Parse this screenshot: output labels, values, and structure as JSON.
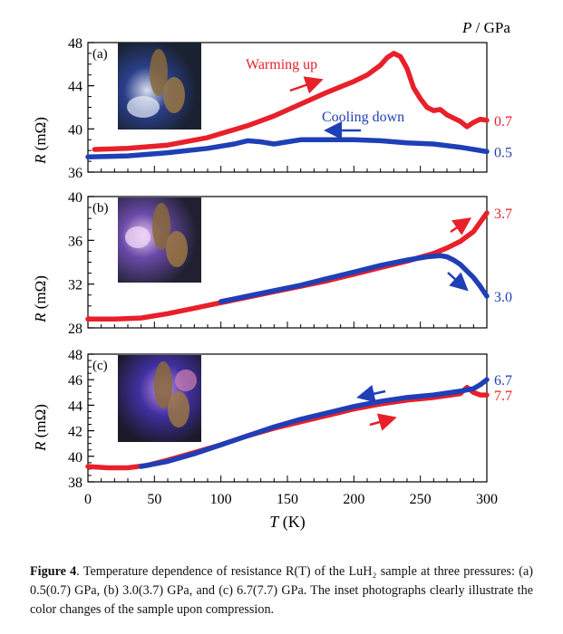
{
  "figure": {
    "unit_label": {
      "symbol": "P",
      "rest": " / GPa"
    }
  },
  "chart_data": [
    {
      "type": "line",
      "panel": "(a)",
      "ylabel": "R (mΩ)",
      "ylabel_symbol": "R",
      "ylabel_unit": " (mΩ)",
      "xlim": [
        0,
        300
      ],
      "ylim": [
        36,
        48
      ],
      "yticks": [
        36,
        40,
        44,
        48
      ],
      "annotations": [
        "Warming up",
        "Cooling down"
      ],
      "series": [
        {
          "name": "0.7",
          "color": "#e8202a",
          "x": [
            5,
            30,
            60,
            90,
            120,
            140,
            160,
            180,
            200,
            210,
            220,
            225,
            230,
            235,
            240,
            245,
            250,
            255,
            260,
            265,
            270,
            280,
            285,
            290,
            295,
            300
          ],
          "y": [
            38.1,
            38.2,
            38.5,
            39.2,
            40.3,
            41.2,
            42.3,
            43.4,
            44.4,
            45.0,
            45.9,
            46.6,
            47.0,
            46.7,
            45.6,
            43.8,
            42.8,
            42.0,
            41.7,
            41.8,
            41.3,
            40.7,
            40.2,
            40.6,
            40.9,
            40.8
          ]
        },
        {
          "name": "0.5",
          "color": "#1f3fb6",
          "x": [
            0,
            30,
            60,
            90,
            110,
            120,
            130,
            140,
            150,
            160,
            180,
            200,
            220,
            240,
            260,
            280,
            300
          ],
          "y": [
            37.4,
            37.5,
            37.8,
            38.2,
            38.6,
            38.9,
            38.8,
            38.6,
            38.8,
            39.0,
            39.0,
            39.0,
            38.9,
            38.7,
            38.6,
            38.3,
            37.9
          ]
        }
      ]
    },
    {
      "type": "line",
      "panel": "(b)",
      "ylabel": "R (mΩ)",
      "ylabel_symbol": "R",
      "ylabel_unit": " (mΩ)",
      "xlim": [
        0,
        300
      ],
      "ylim": [
        28,
        40
      ],
      "yticks": [
        28,
        32,
        36,
        40
      ],
      "series": [
        {
          "name": "3.7",
          "color": "#e8202a",
          "x": [
            0,
            20,
            40,
            60,
            80,
            100,
            120,
            140,
            160,
            180,
            200,
            220,
            240,
            260,
            270,
            280,
            290,
            300
          ],
          "y": [
            28.8,
            28.8,
            28.9,
            29.3,
            29.8,
            30.3,
            30.8,
            31.3,
            31.8,
            32.3,
            32.9,
            33.5,
            34.1,
            34.8,
            35.3,
            35.9,
            36.8,
            38.5
          ]
        },
        {
          "name": "3.0",
          "color": "#1f3fb6",
          "x": [
            100,
            120,
            140,
            160,
            180,
            200,
            220,
            240,
            255,
            265,
            270,
            275,
            280,
            285,
            290,
            295,
            300
          ],
          "y": [
            30.4,
            30.9,
            31.4,
            31.9,
            32.5,
            33.1,
            33.7,
            34.2,
            34.5,
            34.6,
            34.5,
            34.2,
            33.8,
            33.2,
            32.6,
            31.8,
            30.9
          ]
        }
      ]
    },
    {
      "type": "line",
      "panel": "(c)",
      "ylabel": "R (mΩ)",
      "ylabel_symbol": "R",
      "ylabel_unit": " (mΩ)",
      "xlabel": "T (K)",
      "xlabel_symbol": "T",
      "xlabel_unit": " (K)",
      "xlim": [
        0,
        300
      ],
      "xticks": [
        0,
        50,
        100,
        150,
        200,
        250,
        300
      ],
      "ylim": [
        38,
        48
      ],
      "yticks": [
        38,
        40,
        42,
        44,
        46,
        48
      ],
      "series": [
        {
          "name": "7.7",
          "color": "#e8202a",
          "x": [
            0,
            15,
            30,
            45,
            60,
            80,
            100,
            120,
            140,
            160,
            180,
            200,
            220,
            240,
            260,
            280,
            285,
            290,
            295,
            300
          ],
          "y": [
            39.2,
            39.1,
            39.1,
            39.3,
            39.7,
            40.3,
            40.9,
            41.6,
            42.2,
            42.7,
            43.2,
            43.7,
            44.1,
            44.4,
            44.6,
            44.9,
            45.4,
            45.0,
            44.8,
            44.8
          ]
        },
        {
          "name": "6.7",
          "color": "#1f3fb6",
          "x": [
            40,
            60,
            80,
            100,
            120,
            140,
            160,
            180,
            200,
            220,
            240,
            260,
            280,
            290,
            295,
            300
          ],
          "y": [
            39.2,
            39.6,
            40.2,
            40.9,
            41.6,
            42.3,
            42.9,
            43.4,
            43.9,
            44.3,
            44.6,
            44.8,
            45.1,
            45.3,
            45.6,
            46.0
          ]
        }
      ]
    }
  ],
  "caption": {
    "label": "Figure 4",
    "text": ". Temperature dependence of resistance R(T) of the LuH₂ sample at three pressures: (a) 0.5(0.7) GPa, (b) 3.0(3.7) GPa, and (c) 6.7(7.7) GPa. The inset photographs clearly illustrate the color changes of the sample upon compression."
  }
}
